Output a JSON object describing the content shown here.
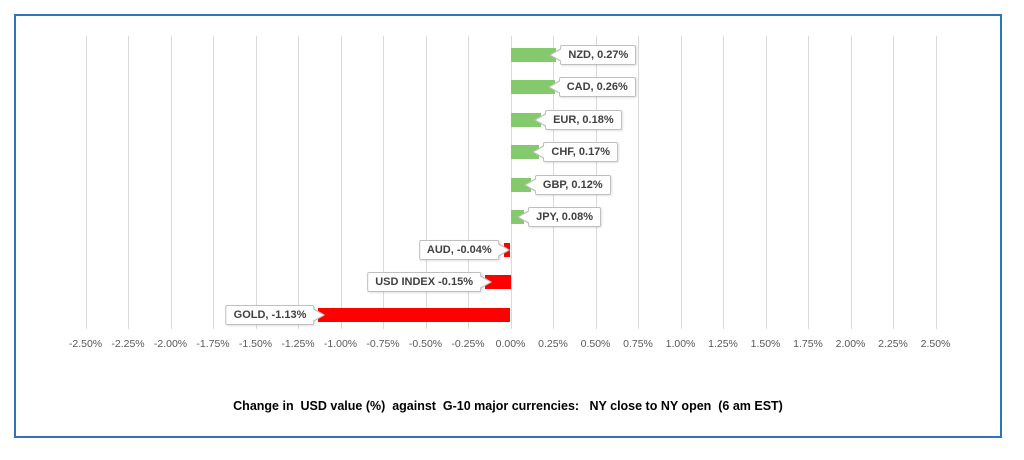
{
  "chart_data": {
    "type": "bar",
    "orientation": "horizontal",
    "title": "Change in  USD value (%)  against  G-10 major currencies:   NY close to NY open  (6 am EST)",
    "categories": [
      "NZD",
      "CAD",
      "EUR",
      "CHF",
      "GBP",
      "JPY",
      "AUD",
      "USD INDEX",
      "GOLD"
    ],
    "values": [
      0.27,
      0.26,
      0.18,
      0.17,
      0.12,
      0.08,
      -0.04,
      -0.15,
      -1.13
    ],
    "data_labels": [
      "NZD, 0.27%",
      "CAD, 0.26%",
      "EUR, 0.18%",
      "CHF, 0.17%",
      "GBP, 0.12%",
      "JPY, 0.08%",
      "AUD, -0.04%",
      "USD INDEX -0.15%",
      "GOLD, -1.13%"
    ],
    "xlabel": "",
    "ylabel": "",
    "xlim": [
      -2.5,
      2.5
    ],
    "tick_step": 0.25,
    "x_tick_labels": [
      "-2.50%",
      "-2.25%",
      "-2.00%",
      "-1.75%",
      "-1.50%",
      "-1.25%",
      "-1.00%",
      "-0.75%",
      "-0.50%",
      "-0.25%",
      "0.00%",
      "0.25%",
      "0.50%",
      "0.75%",
      "1.00%",
      "1.25%",
      "1.50%",
      "1.75%",
      "2.00%",
      "2.25%",
      "2.50%"
    ],
    "grid": "vertical",
    "legend": "none",
    "colors": {
      "positive_bar": "#85C96D",
      "negative_bar": "#FF0000",
      "gridline": "#D9D9D9",
      "frame_border": "#2E75B6",
      "tick_text": "#595959",
      "label_text": "#404040",
      "label_border": "#BFBFBF",
      "label_background": "#FFFFFF"
    }
  }
}
